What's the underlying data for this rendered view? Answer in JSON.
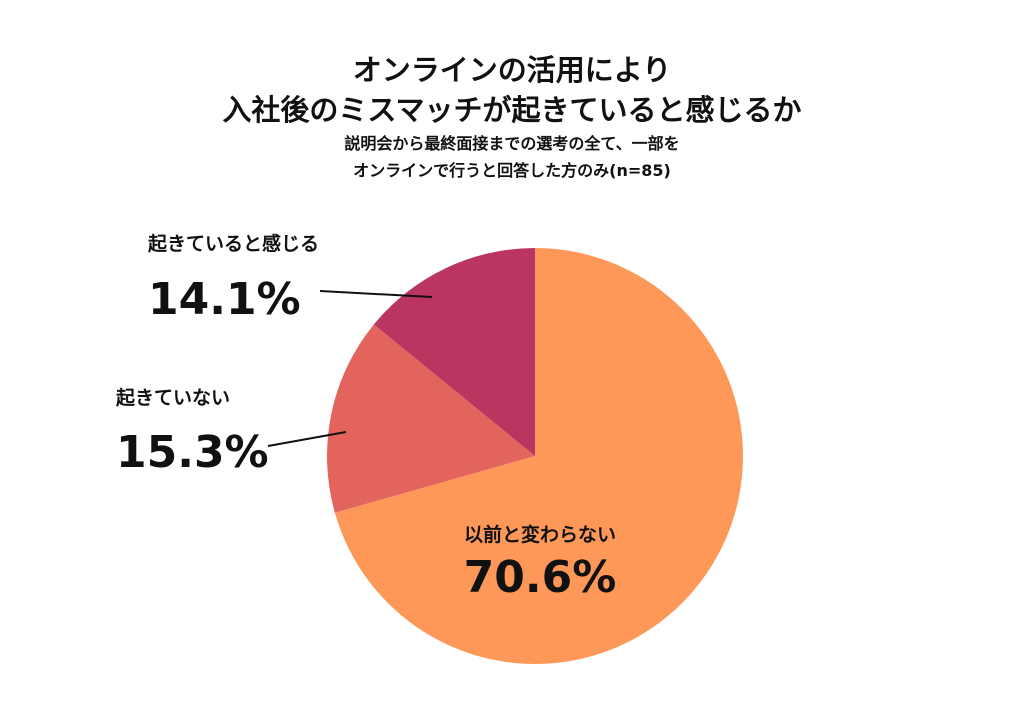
{
  "chart_data": {
    "type": "pie",
    "title": [
      "オンラインの活用により",
      "入社後のミスマッチが起きていると感じるか"
    ],
    "subtitle": [
      "説明会から最終面接までの選考の全て、一部を",
      "オンラインで行うと回答した方のみ(n=85)"
    ],
    "slices": [
      {
        "label": "以前と変わらない",
        "value": 70.6,
        "display": "70.6%",
        "color": "#FD9858"
      },
      {
        "label": "起きていない",
        "value": 15.3,
        "display": "15.3%",
        "color": "#E3645C"
      },
      {
        "label": "起きていると感じる",
        "value": 14.1,
        "display": "14.1%",
        "color": "#BA3560"
      }
    ],
    "legend": "none",
    "start": "top",
    "direction": "clockwise"
  }
}
